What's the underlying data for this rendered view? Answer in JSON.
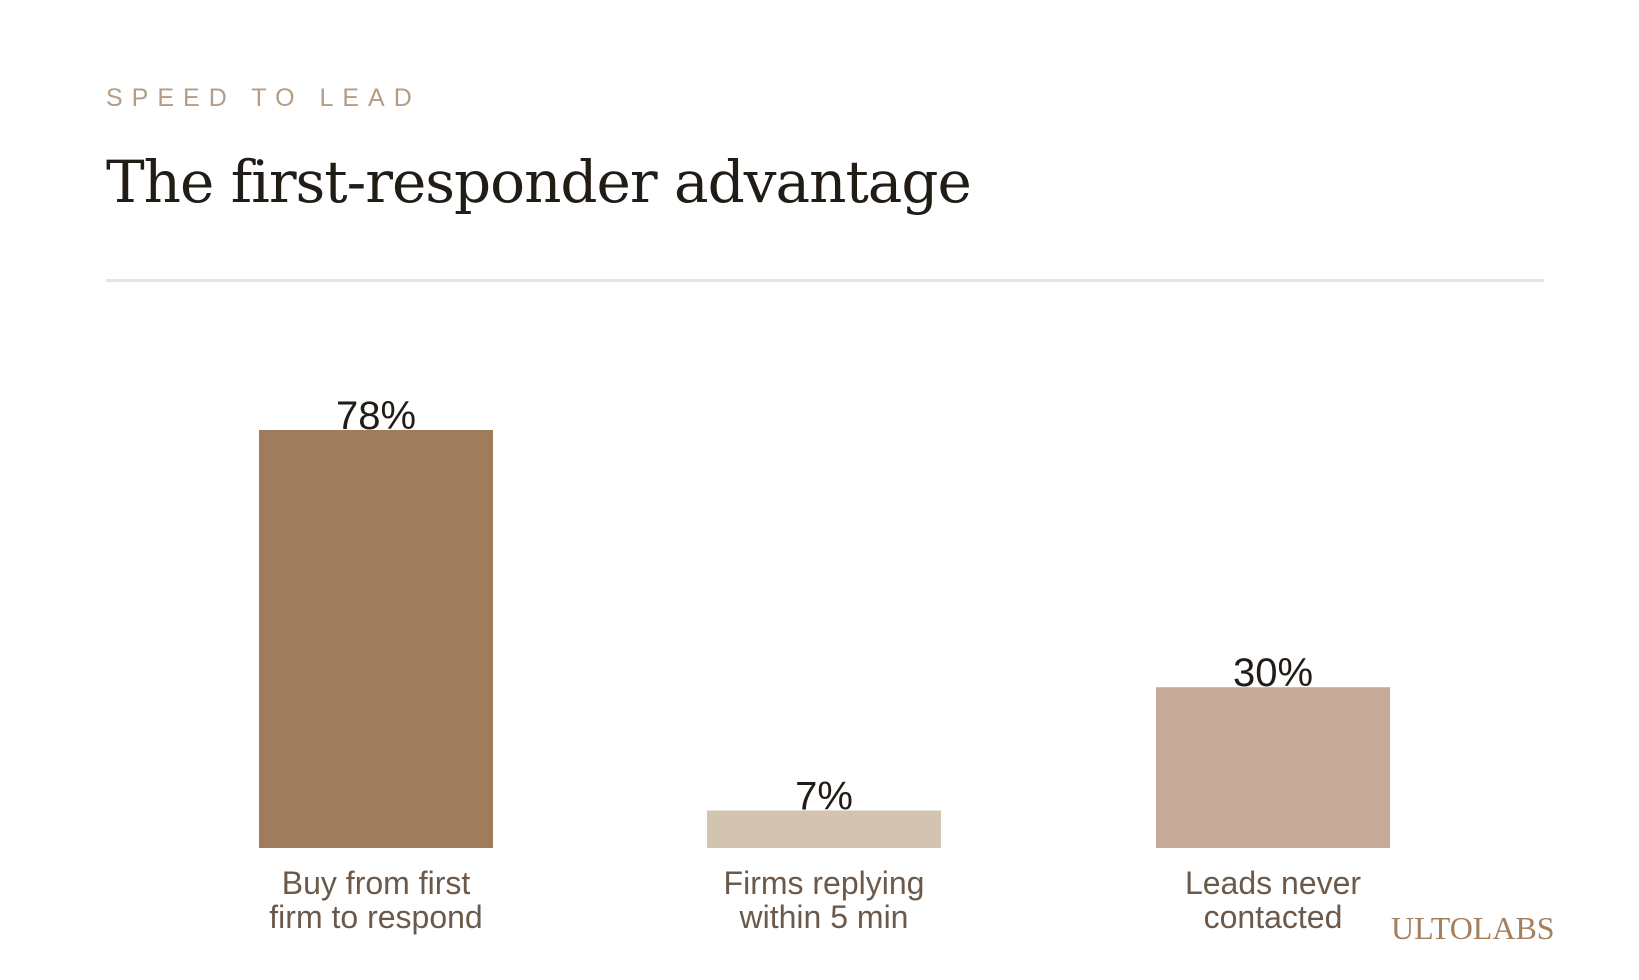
{
  "header": {
    "eyebrow": "SPEED TO LEAD",
    "title": "The first-responder advantage"
  },
  "brand": "ULTOLABS",
  "chart_data": {
    "type": "bar",
    "categories": [
      [
        "Buy from first",
        "firm to respond"
      ],
      [
        "Firms replying",
        "within 5 min"
      ],
      [
        "Leads never",
        "contacted"
      ]
    ],
    "values": [
      78,
      7,
      30
    ],
    "value_labels": [
      "78%",
      "7%",
      "30%"
    ],
    "colors": [
      "#9f7c5b",
      "#d3c3b1",
      "#c4aa97"
    ],
    "ylim": [
      0,
      78
    ],
    "grid": false,
    "legend": "none"
  }
}
